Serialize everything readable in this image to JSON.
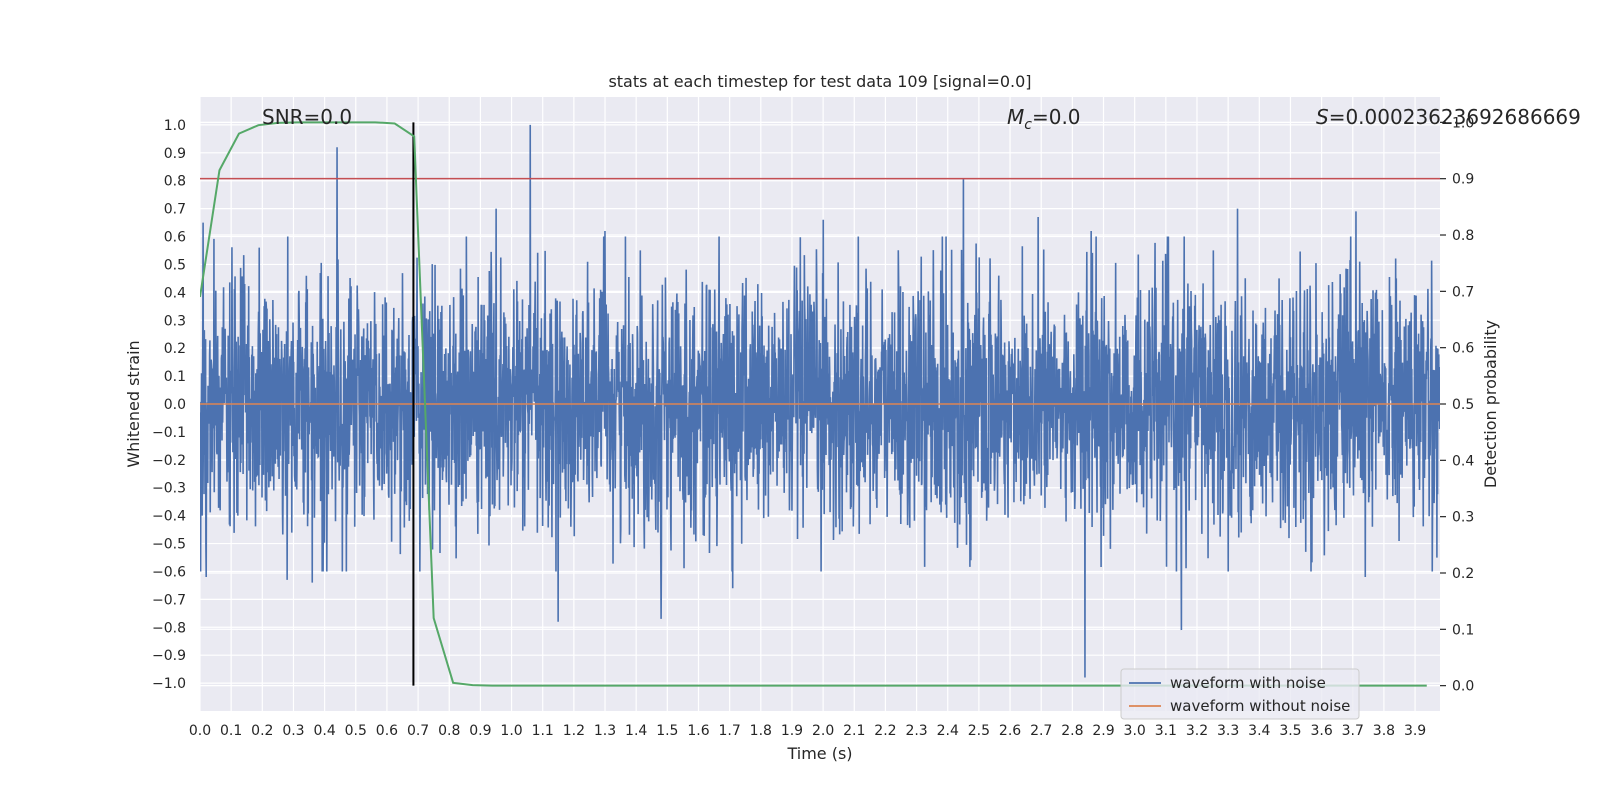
{
  "chart_data": {
    "type": "line",
    "title": "stats at each timestep for test data 109 [signal=0.0]",
    "xlabel": "Time (s)",
    "ylabel": "Whitened strain",
    "y2label": "Detection probability",
    "xlim": [
      0.0,
      3.98
    ],
    "ylim": [
      -1.1,
      1.1
    ],
    "y2lim": [
      -0.045,
      1.045
    ],
    "xticks": [
      0.0,
      0.1,
      0.2,
      0.3,
      0.4,
      0.5,
      0.6,
      0.7,
      0.8,
      0.9,
      1.0,
      1.1,
      1.2,
      1.3,
      1.4,
      1.5,
      1.6,
      1.7,
      1.8,
      1.9,
      2.0,
      2.1,
      2.2,
      2.3,
      2.4,
      2.5,
      2.6,
      2.7,
      2.8,
      2.9,
      3.0,
      3.1,
      3.2,
      3.3,
      3.4,
      3.5,
      3.6,
      3.7,
      3.8,
      3.9
    ],
    "xtick_labels": [
      "0.0",
      "0.1",
      "0.2",
      "0.3",
      "0.4",
      "0.5",
      "0.6",
      "0.7",
      "0.8",
      "0.9",
      "1.0",
      "1.1",
      "1.2",
      "1.3",
      "1.4",
      "1.5",
      "1.6",
      "1.7",
      "1.8",
      "1.9",
      "2.0",
      "2.1",
      "2.2",
      "2.3",
      "2.4",
      "2.5",
      "2.6",
      "2.7",
      "2.8",
      "2.9",
      "3.0",
      "3.1",
      "3.2",
      "3.3",
      "3.4",
      "3.5",
      "3.6",
      "3.7",
      "3.8",
      "3.9"
    ],
    "yticks": [
      1.0,
      0.9,
      0.8,
      0.7,
      0.6,
      0.5,
      0.4,
      0.3,
      0.2,
      0.1,
      0.0,
      -0.1,
      -0.2,
      -0.3,
      -0.4,
      -0.5,
      -0.6,
      -0.7,
      -0.8,
      -0.9,
      -1.0
    ],
    "ytick_labels": [
      "1.0",
      "0.9",
      "0.8",
      "0.7",
      "0.6",
      "0.5",
      "0.4",
      "0.3",
      "0.2",
      "0.1",
      "0.0",
      "−0.1",
      "−0.2",
      "−0.3",
      "−0.4",
      "−0.5",
      "−0.6",
      "−0.7",
      "−0.8",
      "−0.9",
      "−1.0"
    ],
    "y2ticks": [
      1.0,
      0.9,
      0.8,
      0.7,
      0.6,
      0.5,
      0.4,
      0.3,
      0.2,
      0.1,
      0.0
    ],
    "y2tick_labels": [
      "1.0",
      "0.9",
      "0.8",
      "0.7",
      "0.6",
      "0.5",
      "0.4",
      "0.3",
      "0.2",
      "0.1",
      "0.0"
    ],
    "annotations": {
      "snr": "SNR=0.0",
      "mc_symbol": "M",
      "mc_sub": "c",
      "mc_value": "=0.0",
      "s_symbol": "S",
      "s_value": "=0.00023623692686669"
    },
    "vline_x": 0.685,
    "threshold_prob": 0.9,
    "series": [
      {
        "name": "waveform with noise",
        "color": "#4c72b0",
        "noise_sigma": 0.22,
        "n_points": 4000,
        "spikes": [
          {
            "x": 0.01,
            "y": 0.65
          },
          {
            "x": 0.02,
            "y": -0.62
          },
          {
            "x": 0.44,
            "y": 0.92
          },
          {
            "x": 1.06,
            "y": 1.0
          },
          {
            "x": 1.15,
            "y": -0.78
          },
          {
            "x": 1.48,
            "y": -0.77
          },
          {
            "x": 1.71,
            "y": -0.66
          },
          {
            "x": 2.45,
            "y": 0.81
          },
          {
            "x": 2.84,
            "y": -0.98
          },
          {
            "x": 2.86,
            "y": 0.62
          },
          {
            "x": 3.15,
            "y": -0.81
          },
          {
            "x": 3.33,
            "y": 0.7
          },
          {
            "x": 2.0,
            "y": 0.66
          },
          {
            "x": 2.69,
            "y": 0.67
          },
          {
            "x": 3.71,
            "y": 0.69
          },
          {
            "x": 3.74,
            "y": -0.62
          },
          {
            "x": 0.95,
            "y": 0.7
          },
          {
            "x": 1.3,
            "y": 0.62
          },
          {
            "x": 0.28,
            "y": -0.63
          },
          {
            "x": 0.36,
            "y": -0.64
          }
        ]
      },
      {
        "name": "waveform without noise",
        "color": "#dd8452",
        "x": [
          0.0,
          3.98
        ],
        "y": [
          0.0,
          0.0
        ]
      },
      {
        "name": "detection probability",
        "color": "#55a868",
        "axis": "right",
        "x": [
          0.0,
          0.0625,
          0.125,
          0.1875,
          0.25,
          0.3125,
          0.375,
          0.4375,
          0.5,
          0.5625,
          0.625,
          0.6875,
          0.75,
          0.8125,
          0.875,
          0.9375,
          1.0,
          1.5,
          2.0,
          2.5,
          3.0,
          3.5,
          3.9375
        ],
        "y": [
          0.69,
          0.915,
          0.98,
          0.995,
          0.999,
          1.0,
          1.0,
          1.0,
          1.0,
          1.0,
          0.998,
          0.975,
          0.12,
          0.005,
          0.001,
          0.0,
          0.0,
          0.0,
          0.0,
          0.0,
          0.0,
          0.0,
          0.0
        ]
      }
    ],
    "legend": {
      "location": "lower-right",
      "entries": [
        "waveform with noise",
        "waveform without noise"
      ]
    },
    "colors": {
      "plot_bg": "#eaeaf2",
      "grid": "#ffffff",
      "threshold": "#c44e52",
      "vline": "#000000"
    }
  }
}
